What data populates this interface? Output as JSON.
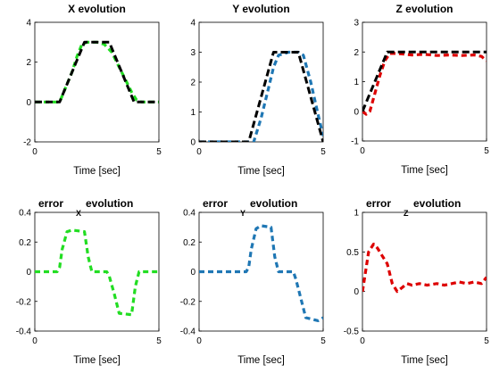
{
  "chart_data": [
    {
      "type": "line",
      "title": "X evolution",
      "xlabel": "Time [sec]",
      "xlim": [
        0,
        5
      ],
      "ylim": [
        -2,
        4
      ],
      "xticks": [
        "0",
        "5"
      ],
      "yticks": [
        "-2",
        "0",
        "2",
        "4"
      ],
      "grid": false,
      "series": [
        {
          "color": "#22dd22",
          "style": "dashed",
          "x": [
            0,
            0.8,
            1.0,
            1.5,
            1.7,
            1.9,
            2.1,
            2.5,
            2.8,
            3.1,
            3.5,
            3.9,
            4.1,
            4.3,
            4.5,
            5.0
          ],
          "y": [
            0,
            0,
            0,
            1.5,
            2.3,
            2.9,
            3.0,
            3.0,
            2.9,
            2.5,
            1.5,
            0.5,
            0.1,
            0,
            0,
            0
          ]
        },
        {
          "color": "#000000",
          "style": "dashed",
          "x": [
            0,
            1.0,
            2.0,
            3.0,
            4.0,
            5.0
          ],
          "y": [
            0,
            0,
            3,
            3,
            0,
            0
          ]
        }
      ]
    },
    {
      "type": "line",
      "title": "Y evolution",
      "xlabel": "Time [sec]",
      "xlim": [
        0,
        5
      ],
      "ylim": [
        0,
        4
      ],
      "xticks": [
        "0",
        "5"
      ],
      "yticks": [
        "0",
        "1",
        "2",
        "3",
        "4"
      ],
      "grid": false,
      "series": [
        {
          "color": "#1f77b4",
          "style": "dashed",
          "x": [
            0,
            2.0,
            2.2,
            2.5,
            2.8,
            3.0,
            3.2,
            3.6,
            4.0,
            4.2,
            4.5,
            4.8,
            5.0
          ],
          "y": [
            0,
            0,
            0,
            0.8,
            1.8,
            2.5,
            2.9,
            3.0,
            3.0,
            2.9,
            2.0,
            0.9,
            0.2
          ]
        },
        {
          "color": "#000000",
          "style": "dashed",
          "x": [
            0,
            2.0,
            3.0,
            4.0,
            5.0
          ],
          "y": [
            0,
            0,
            3,
            3,
            0
          ]
        }
      ]
    },
    {
      "type": "line",
      "title": "Z evolution",
      "xlabel": "Time [sec]",
      "xlim": [
        0,
        5
      ],
      "ylim": [
        -1,
        3
      ],
      "xticks": [
        "0",
        "5"
      ],
      "yticks": [
        "-1",
        "0",
        "1",
        "2",
        "3"
      ],
      "grid": false,
      "series": [
        {
          "color": "#dd0000",
          "style": "dashed",
          "x": [
            0,
            0.15,
            0.3,
            0.5,
            0.7,
            0.9,
            1.1,
            1.4,
            2.0,
            2.5,
            3.0,
            3.5,
            4.0,
            4.5,
            4.8,
            5.0
          ],
          "y": [
            0,
            -0.1,
            0,
            0.6,
            1.2,
            1.7,
            1.95,
            1.95,
            1.9,
            1.92,
            1.88,
            1.9,
            1.88,
            1.9,
            1.85,
            1.7
          ]
        },
        {
          "color": "#000000",
          "style": "dashed",
          "x": [
            0,
            1.0,
            5.0
          ],
          "y": [
            0,
            2,
            2
          ]
        }
      ]
    },
    {
      "type": "line",
      "title": "error",
      "title_subscript": "X",
      "title_suffix": "evolution",
      "xlabel": "Time [sec]",
      "xlim": [
        0,
        5
      ],
      "ylim": [
        -0.4,
        0.4
      ],
      "xticks": [
        "0",
        "5"
      ],
      "yticks": [
        "-0.4",
        "-0.2",
        "0",
        "0.2",
        "0.4"
      ],
      "grid": false,
      "series": [
        {
          "color": "#22dd22",
          "style": "dashed",
          "x": [
            0,
            0.9,
            1.0,
            1.1,
            1.3,
            1.5,
            2.0,
            2.15,
            2.3,
            2.9,
            3.0,
            3.2,
            3.4,
            3.9,
            4.05,
            4.2,
            4.6,
            5.0
          ],
          "y": [
            0,
            0,
            0.03,
            0.15,
            0.27,
            0.28,
            0.27,
            0.1,
            0,
            0,
            -0.03,
            -0.15,
            -0.28,
            -0.29,
            -0.1,
            0,
            0,
            0
          ]
        }
      ]
    },
    {
      "type": "line",
      "title": "error",
      "title_subscript": "Y",
      "title_suffix": "evolution",
      "xlabel": "Time [sec]",
      "xlim": [
        0,
        5
      ],
      "ylim": [
        -0.4,
        0.4
      ],
      "xticks": [
        "0",
        "5"
      ],
      "yticks": [
        "-0.4",
        "-0.2",
        "0",
        "0.2",
        "0.4"
      ],
      "grid": false,
      "series": [
        {
          "color": "#1f77b4",
          "style": "dashed",
          "x": [
            0,
            1.9,
            2.0,
            2.1,
            2.3,
            2.5,
            2.9,
            3.05,
            3.2,
            3.8,
            3.9,
            4.1,
            4.3,
            4.8,
            5.0
          ],
          "y": [
            0,
            0,
            0.03,
            0.15,
            0.29,
            0.31,
            0.3,
            0.1,
            0,
            0,
            -0.05,
            -0.18,
            -0.31,
            -0.33,
            -0.31
          ]
        }
      ]
    },
    {
      "type": "line",
      "title": "error",
      "title_subscript": "Z",
      "title_suffix": "evolution",
      "xlabel": "Time [sec]",
      "xlim": [
        0,
        5
      ],
      "ylim": [
        -0.5,
        1
      ],
      "xticks": [
        "0",
        "5"
      ],
      "yticks": [
        "-0.5",
        "0",
        "0.5",
        "1"
      ],
      "grid": false,
      "series": [
        {
          "color": "#dd0000",
          "style": "dashed",
          "x": [
            0,
            0.1,
            0.25,
            0.45,
            0.6,
            0.8,
            1.0,
            1.2,
            1.4,
            1.6,
            1.8,
            2.0,
            2.3,
            2.6,
            3.0,
            3.3,
            3.6,
            3.9,
            4.2,
            4.5,
            4.8,
            5.0
          ],
          "y": [
            0,
            0.2,
            0.5,
            0.6,
            0.55,
            0.45,
            0.35,
            0.1,
            0.0,
            0.05,
            0.1,
            0.08,
            0.1,
            0.08,
            0.1,
            0.08,
            0.1,
            0.12,
            0.1,
            0.12,
            0.1,
            0.18
          ]
        }
      ]
    }
  ]
}
